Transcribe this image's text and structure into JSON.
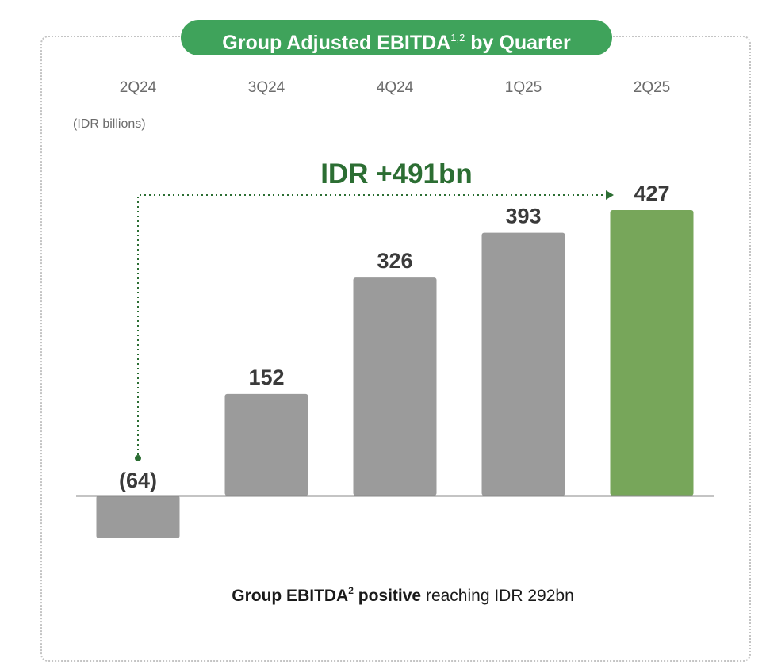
{
  "title": {
    "text": "Group Adjusted EBITDA",
    "superscript": "1,2",
    "suffix": " by Quarter"
  },
  "unit_label": "(IDR billions)",
  "growth_label": "IDR +491bn",
  "footer": {
    "part1": "Group EBITDA",
    "sup": "2",
    "part2": " positive",
    "part3": " reaching IDR 292bn"
  },
  "colors": {
    "bar_default": "#9b9b9b",
    "bar_highlight": "#77a65a",
    "title_bg": "#3fa35b",
    "growth": "#2c6e33"
  },
  "chart_data": {
    "type": "bar",
    "categories": [
      "2Q24",
      "3Q24",
      "4Q24",
      "1Q25",
      "2Q25"
    ],
    "values": [
      -64,
      152,
      326,
      393,
      427
    ],
    "value_labels": [
      "(64)",
      "152",
      "326",
      "393",
      "427"
    ],
    "highlight_index": 4,
    "ylabel": "(IDR billions)",
    "grid": false,
    "annotation": {
      "text": "IDR +491bn",
      "from": "2Q24",
      "to": "2Q25"
    }
  }
}
